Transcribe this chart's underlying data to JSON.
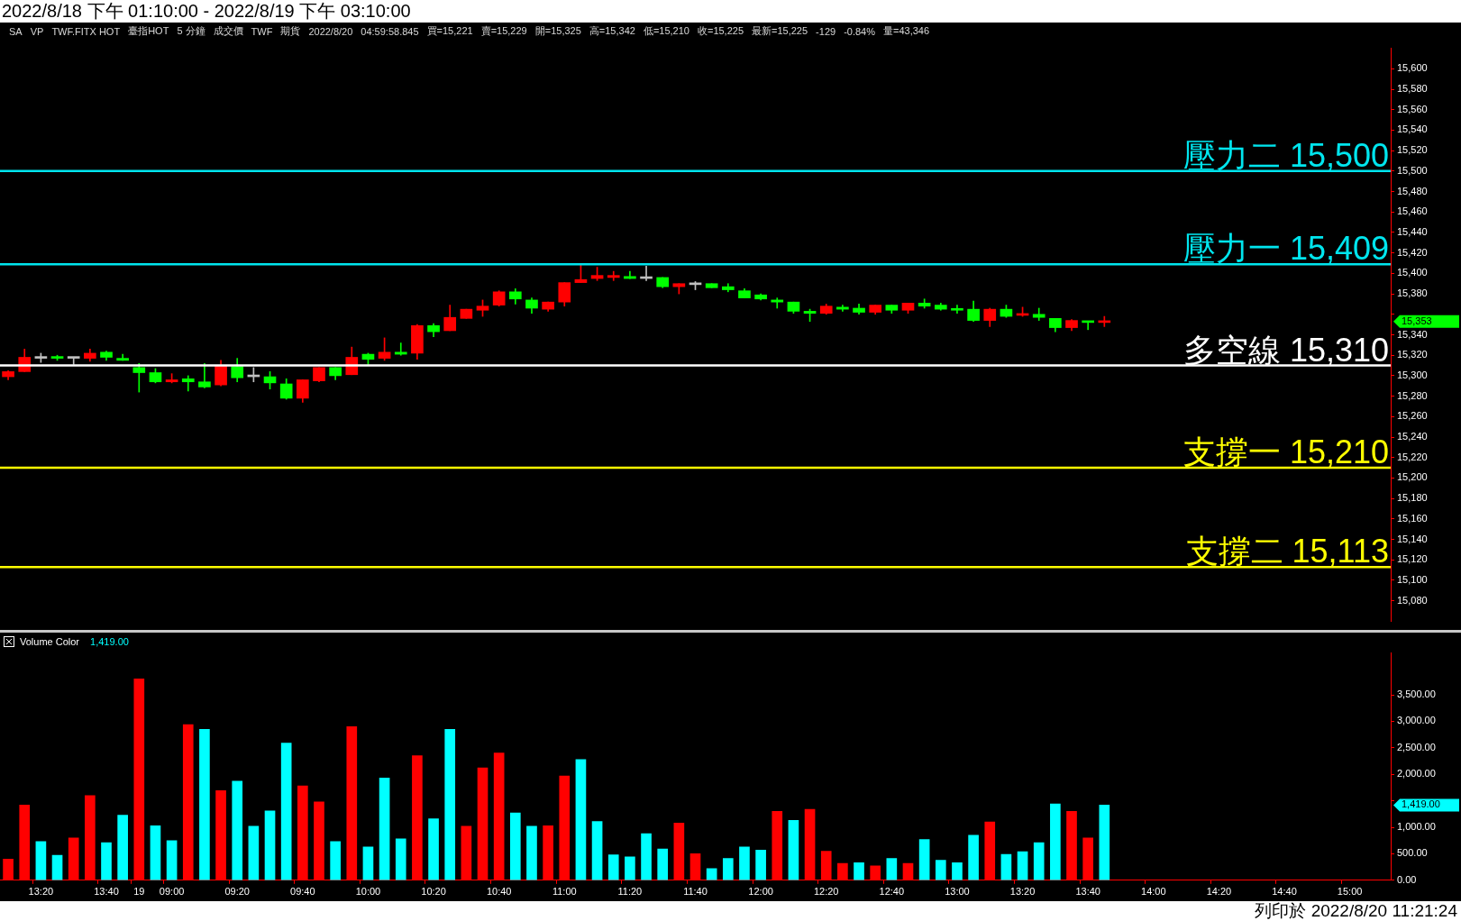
{
  "chart_data": [
    {
      "type": "candlestick",
      "title": "2022/8/18 下午 01:10:00 - 2022/8/19 下午 03:10:00",
      "ohlc": [
        [
          15299,
          15305,
          15296,
          15304
        ],
        [
          15304,
          15326,
          15304,
          15318
        ],
        [
          15317,
          15322,
          15313,
          15317
        ],
        [
          15318,
          15320,
          15315,
          15317
        ],
        [
          15317,
          15317,
          15311,
          15317
        ],
        [
          15317,
          15326,
          15314,
          15322
        ],
        [
          15323,
          15324,
          15315,
          15318
        ],
        [
          15317,
          15321,
          15315,
          15315
        ],
        [
          15308,
          15312,
          15284,
          15303
        ],
        [
          15303,
          15307,
          15293,
          15294
        ],
        [
          15294,
          15302,
          15293,
          15296
        ],
        [
          15297,
          15300,
          15285,
          15294
        ],
        [
          15294,
          15312,
          15288,
          15289
        ],
        [
          15291,
          15315,
          15290,
          15310
        ],
        [
          15309,
          15317,
          15294,
          15298
        ],
        [
          15299,
          15308,
          15294,
          15299
        ],
        [
          15299,
          15304,
          15287,
          15293
        ],
        [
          15292,
          15297,
          15277,
          15278
        ],
        [
          15278,
          15296,
          15274,
          15296
        ],
        [
          15295,
          15308,
          15294,
          15308
        ],
        [
          15308,
          15308,
          15296,
          15300
        ],
        [
          15301,
          15328,
          15301,
          15318
        ],
        [
          15321,
          15322,
          15311,
          15316
        ],
        [
          15317,
          15337,
          15315,
          15323
        ],
        [
          15323,
          15332,
          15320,
          15321
        ],
        [
          15322,
          15350,
          15316,
          15349
        ],
        [
          15349,
          15351,
          15338,
          15343
        ],
        [
          15344,
          15369,
          15344,
          15357
        ],
        [
          15356,
          15365,
          15356,
          15365
        ],
        [
          15364,
          15374,
          15358,
          15368
        ],
        [
          15369,
          15383,
          15368,
          15382
        ],
        [
          15382,
          15385,
          15370,
          15375
        ],
        [
          15374,
          15376,
          15361,
          15366
        ],
        [
          15365,
          15372,
          15363,
          15372
        ],
        [
          15372,
          15391,
          15368,
          15391
        ],
        [
          15391,
          15408,
          15391,
          15394
        ],
        [
          15395,
          15406,
          15393,
          15398
        ],
        [
          15396,
          15402,
          15393,
          15398
        ],
        [
          15397,
          15402,
          15395,
          15395
        ],
        [
          15395,
          15407,
          15393,
          15395
        ],
        [
          15396,
          15396,
          15386,
          15387
        ],
        [
          15387,
          15390,
          15380,
          15390
        ],
        [
          15389,
          15392,
          15384,
          15389
        ],
        [
          15390,
          15390,
          15386,
          15386
        ],
        [
          15387,
          15390,
          15382,
          15384
        ],
        [
          15383,
          15385,
          15376,
          15376
        ],
        [
          15379,
          15380,
          15374,
          15375
        ],
        [
          15374,
          15376,
          15366,
          15372
        ],
        [
          15372,
          15372,
          15361,
          15363
        ],
        [
          15363,
          15365,
          15353,
          15361
        ],
        [
          15361,
          15370,
          15360,
          15368
        ],
        [
          15367,
          15369,
          15363,
          15365
        ],
        [
          15366,
          15370,
          15360,
          15362
        ],
        [
          15362,
          15369,
          15360,
          15369
        ],
        [
          15369,
          15369,
          15361,
          15364
        ],
        [
          15364,
          15371,
          15361,
          15371
        ],
        [
          15371,
          15375,
          15366,
          15368
        ],
        [
          15369,
          15371,
          15364,
          15365
        ],
        [
          15365,
          15369,
          15361,
          15364
        ],
        [
          15365,
          15373,
          15353,
          15354
        ],
        [
          15354,
          15366,
          15348,
          15365
        ],
        [
          15365,
          15369,
          15357,
          15358
        ],
        [
          15359,
          15367,
          15358,
          15360
        ],
        [
          15360,
          15366,
          15354,
          15357
        ],
        [
          15356,
          15356,
          15343,
          15347
        ],
        [
          15347,
          15355,
          15344,
          15354
        ],
        [
          15353,
          15353,
          15345,
          15352
        ],
        [
          15352,
          15358,
          15348,
          15353
        ],
        null,
        null,
        null,
        null,
        null,
        null,
        null,
        null,
        null,
        null,
        null,
        null,
        null,
        null,
        null,
        null,
        null
      ],
      "colors": [
        "#ff0000",
        "#ff0000",
        "#c0c0c0",
        "#00ff00",
        "#c0c0c0",
        "#ff0000",
        "#00ff00",
        "#00ff00",
        "#00ff00",
        "#00ff00",
        "#ff0000",
        "#00ff00",
        "#00ff00",
        "#ff0000",
        "#00ff00",
        "#c0c0c0",
        "#00ff00",
        "#00ff00",
        "#ff0000",
        "#ff0000",
        "#00ff00",
        "#ff0000",
        "#00ff00",
        "#ff0000",
        "#00ff00",
        "#ff0000",
        "#00ff00",
        "#ff0000",
        "#ff0000",
        "#ff0000",
        "#ff0000",
        "#00ff00",
        "#00ff00",
        "#ff0000",
        "#ff0000",
        "#ff0000",
        "#ff0000",
        "#ff0000",
        "#00ff00",
        "#c0c0c0",
        "#00ff00",
        "#ff0000",
        "#c0c0c0",
        "#00ff00",
        "#00ff00",
        "#00ff00",
        "#00ff00",
        "#00ff00",
        "#00ff00",
        "#00ff00",
        "#ff0000",
        "#00ff00",
        "#00ff00",
        "#ff0000",
        "#00ff00",
        "#ff0000",
        "#00ff00",
        "#00ff00",
        "#00ff00",
        "#00ff00",
        "#ff0000",
        "#00ff00",
        "#ff0000",
        "#00ff00",
        "#00ff00",
        "#ff0000",
        "#00ff00",
        "#ff0000",
        null,
        null,
        null,
        null,
        null,
        null,
        null,
        null,
        null,
        null,
        null,
        null,
        null,
        null,
        null,
        null,
        null
      ],
      "ylim": [
        15060,
        15620
      ],
      "yticks": [
        {
          "value": 15080,
          "label": "15,080"
        },
        {
          "value": 15100,
          "label": "15,100"
        },
        {
          "value": 15120,
          "label": "15,120"
        },
        {
          "value": 15140,
          "label": "15,140"
        },
        {
          "value": 15160,
          "label": "15,160"
        },
        {
          "value": 15180,
          "label": "15,180"
        },
        {
          "value": 15200,
          "label": "15,200"
        },
        {
          "value": 15220,
          "label": "15,220"
        },
        {
          "value": 15240,
          "label": "15,240"
        },
        {
          "value": 15260,
          "label": "15,260"
        },
        {
          "value": 15280,
          "label": "15,280"
        },
        {
          "value": 15300,
          "label": "15,300"
        },
        {
          "value": 15320,
          "label": "15,320"
        },
        {
          "value": 15340,
          "label": "15,340"
        },
        {
          "value": 15360,
          "label": null
        },
        {
          "value": 15380,
          "label": "15,380"
        },
        {
          "value": 15400,
          "label": "15,400"
        },
        {
          "value": 15420,
          "label": "15,420"
        },
        {
          "value": 15440,
          "label": "15,440"
        },
        {
          "value": 15460,
          "label": "15,460"
        },
        {
          "value": 15480,
          "label": "15,480"
        },
        {
          "value": 15500,
          "label": "15,500"
        },
        {
          "value": 15520,
          "label": "15,520"
        },
        {
          "value": 15540,
          "label": "15,540"
        },
        {
          "value": 15560,
          "label": "15,560"
        },
        {
          "value": 15580,
          "label": "15,580"
        },
        {
          "value": 15600,
          "label": "15,600"
        }
      ],
      "ref_lines": [
        {
          "axis": "y",
          "value": 15500,
          "label": "壓力二 15,500",
          "color": "#00e5ee"
        },
        {
          "axis": "y",
          "value": 15409,
          "label": "壓力一 15,409",
          "color": "#00e5ee"
        },
        {
          "axis": "y",
          "value": 15310,
          "label": "多空線 15,310",
          "color": "#ffffff"
        },
        {
          "axis": "y",
          "value": 15210,
          "label": "支撐一 15,210",
          "color": "#ffff00"
        },
        {
          "axis": "y",
          "value": 15113,
          "label": "支撐二 15,113",
          "color": "#ffff00"
        }
      ],
      "tick_labels": "y",
      "annotations": [
        "SA",
        "VP",
        "TWF.FITX HOT",
        "臺指HOT",
        "5 分鐘",
        "成交價",
        "TWF",
        "期貨",
        "2022/8/20",
        "04:59:58.845",
        "買=15,221",
        "賣=15,229",
        "開=15,325",
        "高=15,342",
        "低=15,210",
        "收=15,225",
        "最新=15,225",
        "-129",
        "-0.84%",
        "量=43,346",
        "15,353"
      ]
    },
    {
      "type": "bar",
      "title": "Volume Color",
      "categories": [
        null,
        null,
        "13:20",
        null,
        null,
        null,
        "13:40",
        null,
        "19",
        null,
        "09:00",
        null,
        null,
        null,
        "09:20",
        null,
        null,
        null,
        "09:40",
        null,
        null,
        null,
        "10:00",
        null,
        null,
        null,
        "10:20",
        null,
        null,
        null,
        "10:40",
        null,
        null,
        null,
        "11:00",
        null,
        null,
        null,
        "11:20",
        null,
        null,
        null,
        "11:40",
        null,
        null,
        null,
        "12:00",
        null,
        null,
        null,
        "12:20",
        null,
        null,
        null,
        "12:40",
        null,
        null,
        null,
        "13:00",
        null,
        null,
        null,
        "13:20",
        null,
        null,
        null,
        "13:40",
        null,
        null,
        null,
        "14:00",
        null,
        null,
        null,
        "14:20",
        null,
        null,
        null,
        "14:40",
        null,
        null,
        null,
        "15:00",
        null,
        null
      ],
      "values": [
        400,
        1420,
        730,
        470,
        800,
        1600,
        710,
        1230,
        3800,
        1030,
        750,
        2940,
        2850,
        1690,
        1870,
        1020,
        1310,
        2590,
        1780,
        1480,
        730,
        2900,
        630,
        1930,
        780,
        2350,
        1160,
        2850,
        1020,
        2120,
        2400,
        1270,
        1020,
        1030,
        1970,
        2280,
        1110,
        480,
        440,
        880,
        590,
        1080,
        500,
        220,
        410,
        630,
        570,
        1300,
        1130,
        1340,
        550,
        320,
        330,
        270,
        410,
        320,
        770,
        380,
        330,
        850,
        1100,
        490,
        540,
        710,
        1440,
        1300,
        800,
        1419,
        null,
        null,
        null,
        null,
        null,
        null,
        null,
        null,
        null,
        null,
        null,
        null,
        null,
        null,
        null,
        null,
        null
      ],
      "colors": [
        "#ff0000",
        "#ff0000",
        "#00ffff",
        "#00ffff",
        "#ff0000",
        "#ff0000",
        "#00ffff",
        "#00ffff",
        "#ff0000",
        "#00ffff",
        "#00ffff",
        "#ff0000",
        "#00ffff",
        "#ff0000",
        "#00ffff",
        "#00ffff",
        "#00ffff",
        "#00ffff",
        "#ff0000",
        "#ff0000",
        "#00ffff",
        "#ff0000",
        "#00ffff",
        "#00ffff",
        "#00ffff",
        "#ff0000",
        "#00ffff",
        "#00ffff",
        "#ff0000",
        "#ff0000",
        "#ff0000",
        "#00ffff",
        "#00ffff",
        "#ff0000",
        "#ff0000",
        "#00ffff",
        "#00ffff",
        "#00ffff",
        "#00ffff",
        "#00ffff",
        "#00ffff",
        "#ff0000",
        "#ff0000",
        "#00ffff",
        "#00ffff",
        "#00ffff",
        "#00ffff",
        "#ff0000",
        "#00ffff",
        "#ff0000",
        "#ff0000",
        "#ff0000",
        "#00ffff",
        "#ff0000",
        "#00ffff",
        "#ff0000",
        "#00ffff",
        "#00ffff",
        "#00ffff",
        "#00ffff",
        "#ff0000",
        "#00ffff",
        "#00ffff",
        "#00ffff",
        "#00ffff",
        "#ff0000",
        "#ff0000",
        "#00ffff",
        null,
        null,
        null,
        null,
        null,
        null,
        null,
        null,
        null,
        null,
        null,
        null,
        null,
        null,
        null,
        null,
        null
      ],
      "ylim": [
        0,
        4300
      ],
      "yticks": [
        {
          "value": 0,
          "label": "0.00"
        },
        {
          "value": 500,
          "label": "500.00"
        },
        {
          "value": 1000,
          "label": "1,000.00"
        },
        {
          "value": 1500,
          "label": null
        },
        {
          "value": 2000,
          "label": "2,000.00"
        },
        {
          "value": 2500,
          "label": "2,500.00"
        },
        {
          "value": 3000,
          "label": "3,000.00"
        },
        {
          "value": 3500,
          "label": "3,500.00"
        }
      ],
      "annotations": [
        "1,419.00",
        "1,419.00",
        "列印於 2022/8/20 11:21:24"
      ]
    }
  ]
}
